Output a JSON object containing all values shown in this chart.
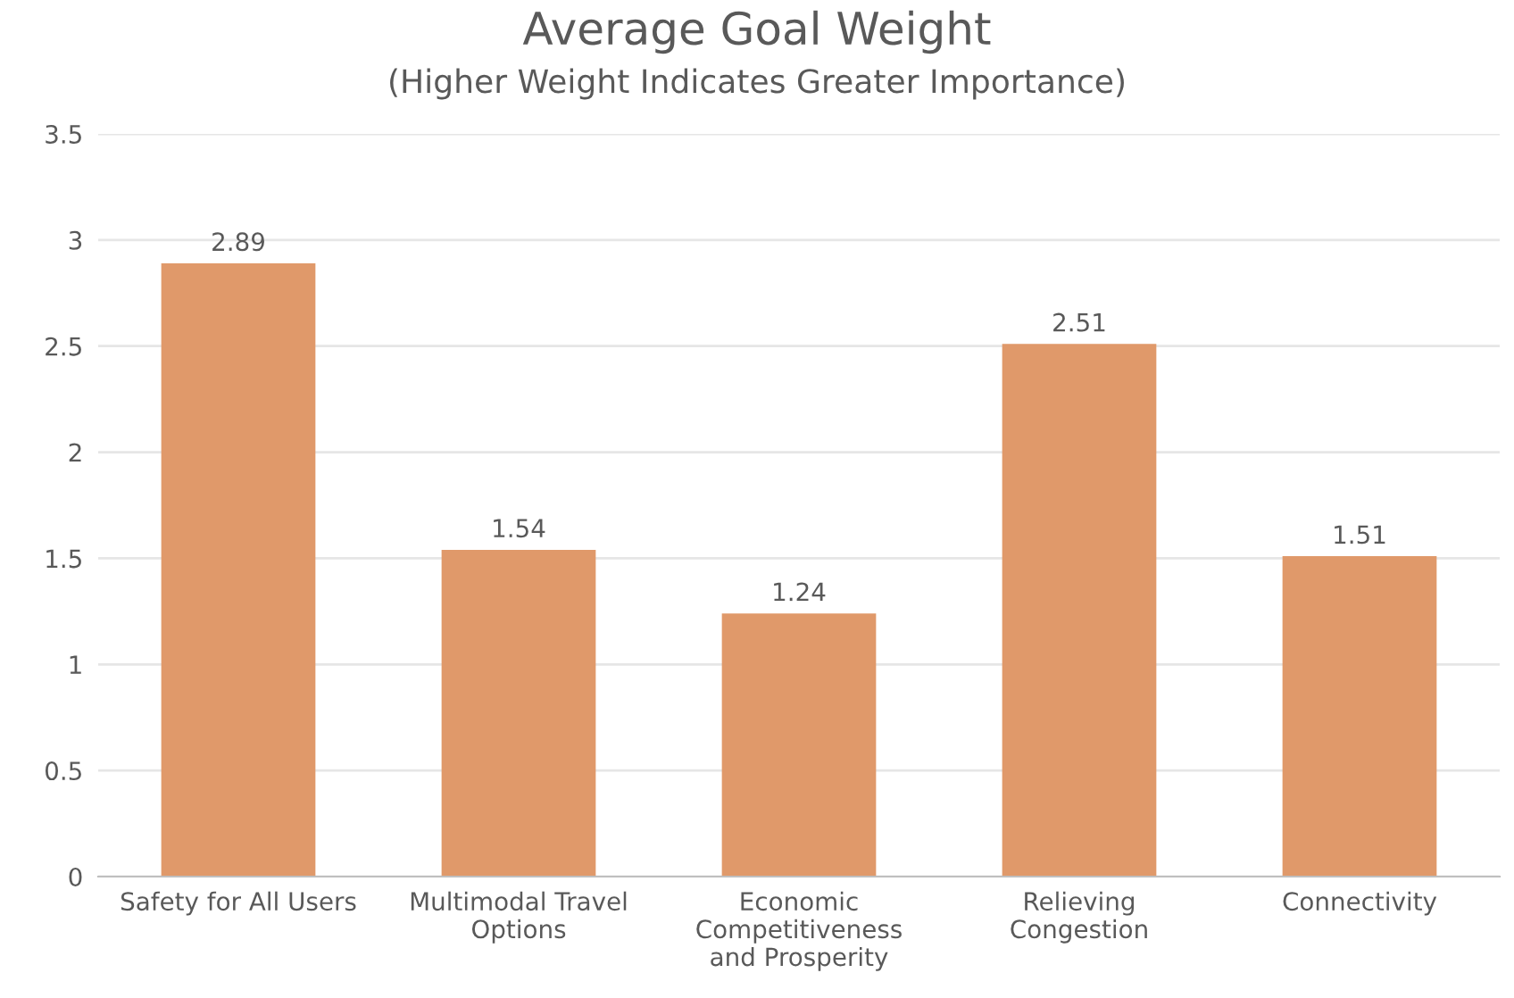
{
  "chart_data": {
    "type": "bar",
    "title": "Average Goal Weight",
    "subtitle": "(Higher Weight Indicates Greater Importance)",
    "categories": [
      "Safety for All Users",
      "Multimodal Travel\nOptions",
      "Economic\nCompetitiveness\nand Prosperity",
      "Relieving\nCongestion",
      "Connectivity"
    ],
    "values": [
      2.89,
      1.54,
      1.24,
      2.51,
      1.51
    ],
    "color": "#e0996a",
    "ylim": [
      0,
      3.5
    ],
    "yticks": [
      0,
      0.5,
      1,
      1.5,
      2,
      2.5,
      3,
      3.5
    ],
    "grid": "y",
    "data_labels": true,
    "legend": false
  }
}
